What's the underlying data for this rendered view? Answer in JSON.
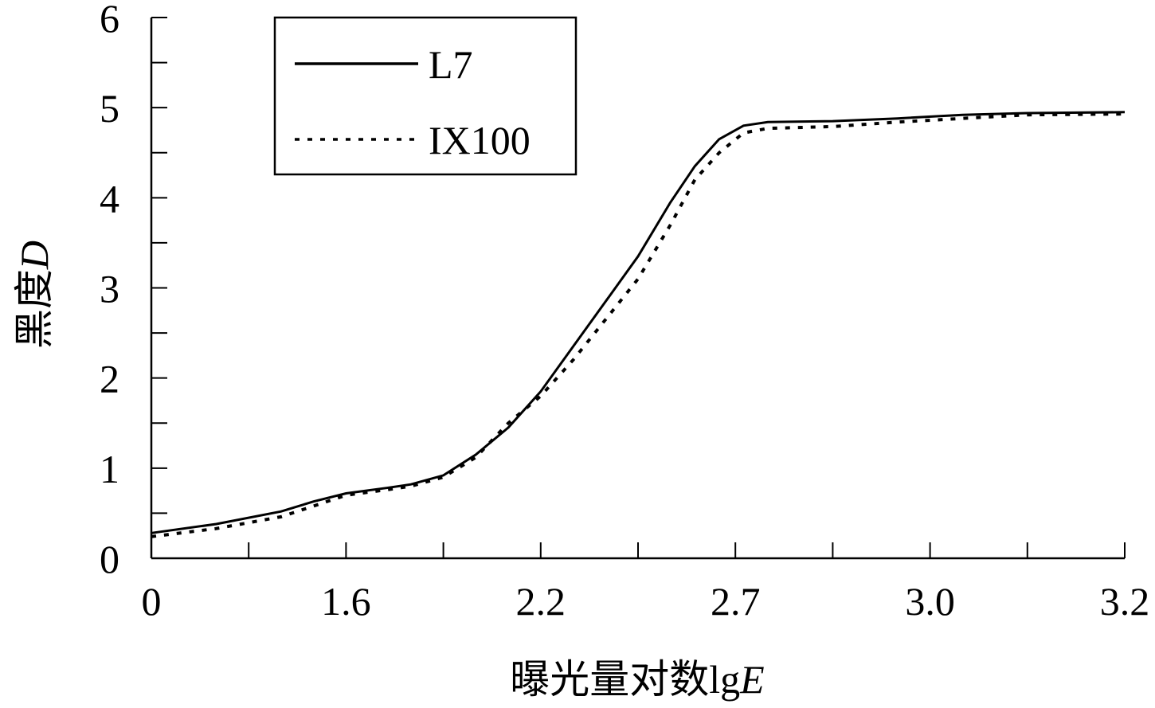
{
  "chart_data": {
    "type": "line",
    "title": "",
    "xlabel": "曝光量对数lgE",
    "xlabel_parts": {
      "text": "曝光量对数lg",
      "italic": "E"
    },
    "ylabel": "黑度D",
    "ylabel_parts": {
      "text": "黑度",
      "italic": "D"
    },
    "x_tick_labels": [
      "0",
      "1.6",
      "2.2",
      "2.7",
      "3.0",
      "3.2"
    ],
    "y_tick_labels": [
      "0",
      "1",
      "2",
      "3",
      "4",
      "5",
      "6"
    ],
    "ylim": [
      0,
      6
    ],
    "grid": false,
    "legend": {
      "position": "top-left",
      "entries": [
        "L7",
        "IX100"
      ]
    },
    "series": [
      {
        "name": "L7",
        "style": "solid",
        "color": "#000000",
        "points": [
          {
            "x": 0,
            "y": 0.28
          },
          {
            "x": 0.4,
            "y": 0.38
          },
          {
            "x": 0.8,
            "y": 0.52
          },
          {
            "x": 1.0,
            "y": 0.63
          },
          {
            "x": 1.2,
            "y": 0.72
          },
          {
            "x": 1.45,
            "y": 0.78
          },
          {
            "x": 1.6,
            "y": 0.82
          },
          {
            "x": 1.8,
            "y": 0.92
          },
          {
            "x": 2.0,
            "y": 1.15
          },
          {
            "x": 2.2,
            "y": 1.45
          },
          {
            "x": 2.4,
            "y": 1.85
          },
          {
            "x": 2.6,
            "y": 2.35
          },
          {
            "x": 2.8,
            "y": 2.85
          },
          {
            "x": 3.0,
            "y": 3.35
          },
          {
            "x": 3.2,
            "y": 3.95
          },
          {
            "x": 3.35,
            "y": 4.35
          },
          {
            "x": 3.5,
            "y": 4.65
          },
          {
            "x": 3.65,
            "y": 4.8
          },
          {
            "x": 3.8,
            "y": 4.84
          },
          {
            "x": 4.2,
            "y": 4.85
          },
          {
            "x": 4.6,
            "y": 4.88
          },
          {
            "x": 5.0,
            "y": 4.92
          },
          {
            "x": 5.4,
            "y": 4.94
          },
          {
            "x": 6.0,
            "y": 4.95
          }
        ]
      },
      {
        "name": "IX100",
        "style": "dotted",
        "color": "#000000",
        "points": [
          {
            "x": 0,
            "y": 0.24
          },
          {
            "x": 0.4,
            "y": 0.33
          },
          {
            "x": 0.8,
            "y": 0.46
          },
          {
            "x": 1.0,
            "y": 0.58
          },
          {
            "x": 1.2,
            "y": 0.7
          },
          {
            "x": 1.45,
            "y": 0.76
          },
          {
            "x": 1.6,
            "y": 0.8
          },
          {
            "x": 1.8,
            "y": 0.9
          },
          {
            "x": 2.0,
            "y": 1.12
          },
          {
            "x": 2.2,
            "y": 1.5
          },
          {
            "x": 2.4,
            "y": 1.8
          },
          {
            "x": 2.6,
            "y": 2.2
          },
          {
            "x": 2.8,
            "y": 2.65
          },
          {
            "x": 3.0,
            "y": 3.1
          },
          {
            "x": 3.2,
            "y": 3.7
          },
          {
            "x": 3.35,
            "y": 4.2
          },
          {
            "x": 3.5,
            "y": 4.5
          },
          {
            "x": 3.65,
            "y": 4.72
          },
          {
            "x": 3.8,
            "y": 4.77
          },
          {
            "x": 4.2,
            "y": 4.79
          },
          {
            "x": 4.6,
            "y": 4.84
          },
          {
            "x": 5.0,
            "y": 4.88
          },
          {
            "x": 5.4,
            "y": 4.92
          },
          {
            "x": 6.0,
            "y": 4.93
          }
        ]
      }
    ]
  }
}
